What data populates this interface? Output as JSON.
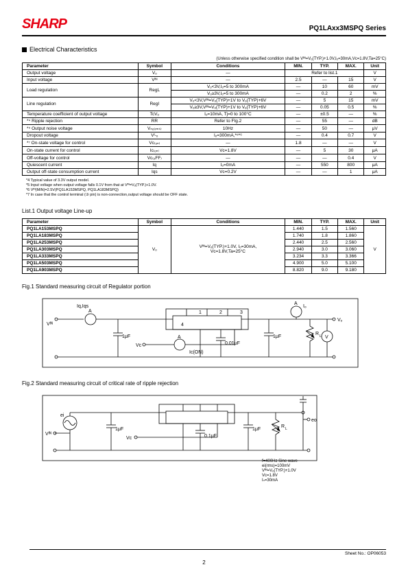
{
  "header": {
    "logo": "SHARP",
    "logo_color": "#e60012",
    "series": "PQ1LAxx3MSPQ Series"
  },
  "sections": {
    "ec_title": "Electrical Characteristics",
    "ec_note": "(Unless otherwise specified condition shall be Vᴵᴺ=Vₒ(TYP.)+1.0V,Iₒ=30mA,Vc=1.8V,Ta=25°C)",
    "list1_title": "List.1  Output voltage Line-up",
    "fig1_title": "Fig.1  Standard measuring circuit of Regulator portion",
    "fig2_title": "Fig.2  Standard measuring circuit of critical rate of ripple rejection"
  },
  "ec_table": {
    "headers": [
      "Parameter",
      "Symbol",
      "Conditions",
      "MIN.",
      "TYP.",
      "MAX.",
      "Unit"
    ],
    "rows": [
      {
        "param": "Output voltage",
        "sym": "Vₒ",
        "cond": "—",
        "min": "",
        "typ": "Refer to list.1",
        "max": "",
        "unit": "V",
        "merge_typ": 3
      },
      {
        "param": "Input voltage",
        "sym": "Vᴵᴺ",
        "cond": "—",
        "min": "2.5",
        "typ": "—",
        "max": "15",
        "unit": "V"
      },
      {
        "param": "Load regulation",
        "sym": "RegL",
        "cond": "Vₒ<3V,Iₒ=5 to 300mA",
        "min": "—",
        "typ": "10",
        "max": "60",
        "unit": "mV",
        "rowspan": 2
      },
      {
        "param": "",
        "sym": "",
        "cond": "Vₒ≥3V,Iₒ=5 to 300mA",
        "min": "—",
        "typ": "0.2",
        "max": "2",
        "unit": "%"
      },
      {
        "param": "Line regulation",
        "sym": "RegI",
        "cond": "Vₒ<3V,Vᴵᴺ=Vₒ(TYP)+1V to Vₒ(TYP)+6V",
        "min": "—",
        "typ": "5",
        "max": "15",
        "unit": "mV",
        "rowspan": 2
      },
      {
        "param": "",
        "sym": "",
        "cond": "Vₒ≥3V,Vᴵᴺ=Vₒ(TYP)+1V to Vₒ(TYP)+6V",
        "min": "—",
        "typ": "0.05",
        "max": "0.5",
        "unit": "%"
      },
      {
        "param": "Temperature coefficient of output voltage",
        "sym": "TcVₒ",
        "cond": "Iₒ=10mA, Tj=0 to 100°C",
        "min": "—",
        "typ": "±0.5",
        "max": "—",
        "unit": "%"
      },
      {
        "param": "*⁴ Ripple rejection",
        "sym": "RR",
        "cond": "Refer to FIg.2",
        "min": "—",
        "typ": "55",
        "max": "—",
        "unit": "dB"
      },
      {
        "param": "*⁴ Output noise voltage",
        "sym": "Vₙₒ₍ᵣₘₛ₎",
        "cond": "10Hz<f<100kHz,Cₒ=0.1μF,Iₒ=30mA",
        "min": "—",
        "typ": "50",
        "max": "—",
        "unit": "μV"
      },
      {
        "param": "Dropout voltage",
        "sym": "Vᴵ-ₒ",
        "cond": "Iₒ=300mA,*⁵*⁶",
        "min": "—",
        "typ": "0.4",
        "max": "0.7",
        "unit": "V"
      },
      {
        "param": "*⁷ On-state voltage for control",
        "sym": "Vc₍ₒₙ₎",
        "cond": "—",
        "min": "1.8",
        "typ": "—",
        "max": "—",
        "unit": "V"
      },
      {
        "param": "On-state current for control",
        "sym": "Ic₍ₒₙ₎",
        "cond": "Vc=1.8V",
        "min": "—",
        "typ": "5",
        "max": "30",
        "unit": "μA"
      },
      {
        "param": "Off-voltage for control",
        "sym": "Vc₍ₒFF₎",
        "cond": "—",
        "min": "—",
        "typ": "—",
        "max": "0.4",
        "unit": "V"
      },
      {
        "param": "Quiescent current",
        "sym": "Iq",
        "cond": "Iₒ=0mA",
        "min": "—",
        "typ": "550",
        "max": "800",
        "unit": "μA"
      },
      {
        "param": "Output off-state consumption current",
        "sym": "Iqs",
        "cond": "Vc=0.2V",
        "min": "—",
        "typ": "—",
        "max": "1",
        "unit": "μA"
      }
    ]
  },
  "footnotes": [
    "*4 Typical value of 3.3V output model.",
    "*5 Input voltage when output voltage falls 0.1V from that at Vᴵᴺ=Vₒ(TYP.)+1.0V.",
    "*6 Vᴵᴺ(MIN)=2.5V(PQ1LA153MSPQ, PQ1LA183MSPQ)",
    "*7 In case that the control terminal (③ pin) is non-connection,output voltage should be OFF state."
  ],
  "list1": {
    "headers": [
      "Parameter",
      "Symbol",
      "Conditions",
      "MIN.",
      "TYP.",
      "MAX.",
      "Unit"
    ],
    "cond_text": "Vᴵᴺ=Vₒ(TYP.)+1.0V, Iₒ=30mA,\nVc=1.8V,Ta=25°C",
    "sym": "Vₒ",
    "rows": [
      {
        "p": "PQ1LA153MSPQ",
        "min": "1.440",
        "typ": "1.5",
        "max": "1.560"
      },
      {
        "p": "PQ1LA183MSPQ",
        "min": "1.740",
        "typ": "1.8",
        "max": "1.860"
      },
      {
        "p": "PQ1LA253MSPQ",
        "min": "2.440",
        "typ": "2.5",
        "max": "2.560"
      },
      {
        "p": "PQ1LA303MSPQ",
        "min": "2.940",
        "typ": "3.0",
        "max": "3.060"
      },
      {
        "p": "PQ1LA333MSPQ",
        "min": "3.234",
        "typ": "3.3",
        "max": "3.366"
      },
      {
        "p": "PQ1LA503MSPQ",
        "min": "4.900",
        "typ": "5.0",
        "max": "5.100"
      },
      {
        "p": "PQ1LA903MSPQ",
        "min": "8.820",
        "typ": "9.0",
        "max": "9.180"
      }
    ],
    "unit": "V"
  },
  "fig1_labels": {
    "iq": "Iq,Iqs",
    "vin": "Vᴵᴺ",
    "c1": "1μF",
    "vc": "Vc",
    "icon": "Ic(ON)",
    "c2": "0.01μF",
    "c3": "1μF",
    "io": "Iₒ",
    "vo": "Vₒ",
    "rl": "R<sub>L</sub>",
    "pins": [
      "1",
      "2",
      "3",
      "4"
    ]
  },
  "fig2_labels": {
    "ei": "ei",
    "vin": "Vᴵᴺ",
    "c1": "1μF",
    "vc": "Vc",
    "c2": "0.1μF",
    "c3": "1μF",
    "rl": "R<sub>L</sub>",
    "eo": "eo",
    "notes": [
      "f=400Hz  Sine wave",
      "ei(rms)=100mV",
      "Vᴵᴺ=Vₒ(TYP.)+1.0V",
      "Vc=1.8V",
      "Iₒ=30mA",
      "RR=20log (ei(rms)/Eo(rms))"
    ]
  },
  "footer": {
    "page": "2",
    "sheet": "Sheet No.: OP06053"
  }
}
